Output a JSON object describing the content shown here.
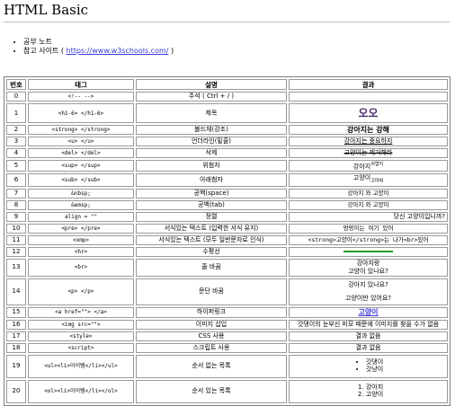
{
  "page": {
    "title": "HTML Basic",
    "notes": [
      {
        "text": "공부 노트",
        "link": null
      },
      {
        "text": "참고 사이트 ( ",
        "link": "https://www.w3schools.com/",
        "after": " )"
      }
    ]
  },
  "table": {
    "headers": [
      "번호",
      "태그",
      "설명",
      "결과"
    ],
    "rows": [
      {
        "num": "0",
        "tag": "<!-- -->",
        "desc": "주석 ( Ctrl + / )",
        "result": ""
      },
      {
        "num": "1",
        "tag": "<h1-6> </h1-6>",
        "desc": "제목",
        "result": "오오"
      },
      {
        "num": "2",
        "tag": "<strong> </strong>",
        "desc": "볼드체(강조)",
        "result": "강아지는 강해"
      },
      {
        "num": "3",
        "tag": "<u> </u>",
        "desc": "언더라인(밑줄)",
        "result": "강아지는 중요하지"
      },
      {
        "num": "4",
        "tag": "<del> </del>",
        "desc": "삭제",
        "result": "고양이는 제거해라"
      },
      {
        "num": "5",
        "tag": "<sup> </sup>",
        "desc": "위첨자",
        "result": "강아지",
        "result_extra": "귀엽지"
      },
      {
        "num": "6",
        "tag": "<sub> </sub>",
        "desc": "아래첨자",
        "result": "고양이",
        "result_extra": "고마워"
      },
      {
        "num": "7",
        "tag": "&nbsp;",
        "desc": "공백(space)",
        "result": "강아지      와 고양이"
      },
      {
        "num": "8",
        "tag": "&emsp;",
        "desc": "공백(tab)",
        "result": "강아지         와 고양이"
      },
      {
        "num": "9",
        "tag": "align = \"\"",
        "desc": "정렬",
        "result": "당신 고양이입니까?"
      },
      {
        "num": "10",
        "tag": "<pre> </pre>",
        "desc": "서식있는 텍스트 (입력한 서식 유지)",
        "result": "멍멍이는 여기       있어"
      },
      {
        "num": "11",
        "tag": "<xmp>",
        "desc": "서식있는 텍스트 (모두 일반문자로 인식)",
        "result": "<strong>고양이</strong>는 나가<br>있어"
      },
      {
        "num": "12",
        "tag": "<hr>",
        "desc": "수평선",
        "result": ""
      },
      {
        "num": "13",
        "tag": "<br>",
        "desc": "줄 바꿈",
        "result": "강아지랑",
        "result_line2": "고양이 있나요?"
      },
      {
        "num": "14",
        "tag": "<p> </p>",
        "desc": "문단 바꿈",
        "result": "강아지 있나요?",
        "result_line2": "고양이만 있어요?"
      },
      {
        "num": "15",
        "tag": "<a href=\"\"> </a>",
        "desc": "하이퍼링크",
        "result": "고양이"
      },
      {
        "num": "16",
        "tag": "<img src=\"\">",
        "desc": "이미지 삽입",
        "result": "갓댕이의 눈부신 미모 때문에 이미지를 찾을 수가 없음"
      },
      {
        "num": "17",
        "tag": "<style>",
        "desc": "CSS 사용",
        "result": "결과 없음"
      },
      {
        "num": "18",
        "tag": "<script>",
        "desc": "스크립트 사용",
        "result": "결과 없음"
      },
      {
        "num": "19",
        "tag": "<ul><li>아이템</li></ul>",
        "desc": "순서 없는 목록",
        "result_list": [
          "갓댕이",
          "갓냥이"
        ]
      },
      {
        "num": "20",
        "tag": "<ol><li>아이템</li></ol>",
        "desc": "순서 있는 목록",
        "result_list": [
          "강아지",
          "고양이"
        ]
      }
    ]
  }
}
